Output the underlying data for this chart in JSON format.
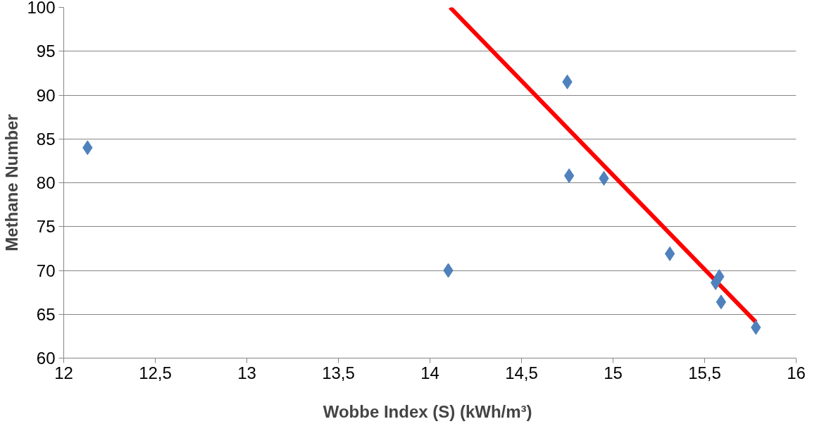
{
  "chart_data": {
    "type": "scatter",
    "xlabel": "Wobbe Index (S)  (kWh/m³)",
    "ylabel": "Methane Number",
    "xlim": [
      12,
      16
    ],
    "ylim": [
      60,
      100
    ],
    "xticks": [
      12,
      {
        "value": 12.5,
        "label": "12,5"
      },
      13,
      {
        "value": 13.5,
        "label": "13,5"
      },
      14,
      {
        "value": 14.5,
        "label": "14,5"
      },
      15,
      {
        "value": 15.5,
        "label": "15,5"
      },
      16
    ],
    "yticks": [
      60,
      65,
      70,
      75,
      80,
      85,
      90,
      95,
      100
    ],
    "grid": "y",
    "series": [
      {
        "marker": "diamond",
        "color": "#4f81bd",
        "x": [
          12.13,
          14.1,
          14.75,
          14.76,
          14.95,
          15.31,
          15.56,
          15.58,
          15.59,
          15.78
        ],
        "values": [
          84.0,
          70.0,
          91.5,
          80.8,
          80.5,
          71.9,
          68.6,
          69.3,
          66.4,
          63.5
        ]
      },
      {
        "type": "line",
        "marker": "none",
        "color": "#ff0000",
        "line_style": "solid",
        "x": [
          14.11,
          15.78
        ],
        "values": [
          100,
          64.1
        ]
      }
    ]
  }
}
